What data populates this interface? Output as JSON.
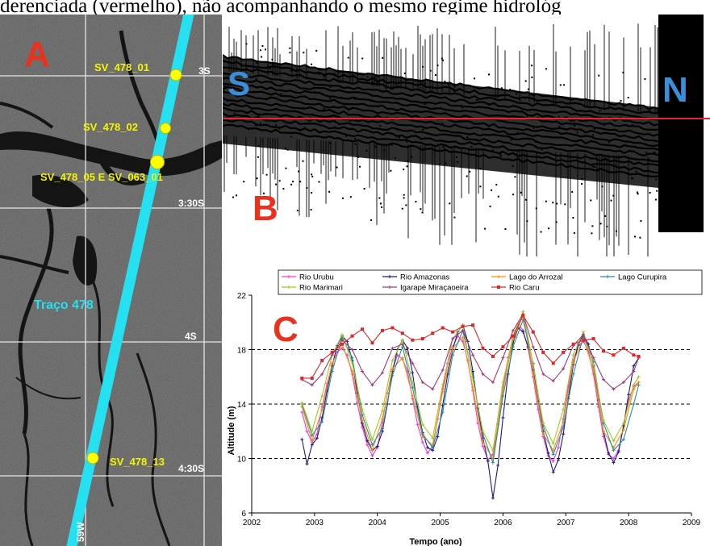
{
  "caption": "derenciada (vermelho), não acompanhando o mesmo regime hidrológ",
  "panel_a": {
    "letter": "A",
    "track_label": "Traço 478",
    "stations": [
      "SV_478_01",
      "SV_478_02",
      "SV_478_05 E SV_063_01",
      "SV_478_13"
    ],
    "lat_labels": [
      "3S",
      "3:30S",
      "4S",
      "4:30S"
    ],
    "lon_label": "59W",
    "colors": {
      "track": "#25e0f0",
      "station": "#ffff00",
      "letter": "#e8321e",
      "grid": "#e6e6e6"
    }
  },
  "panel_b": {
    "letter": "B",
    "south": "S",
    "north": "N",
    "colors": {
      "ref_line": "#e8242a",
      "dir_letters": "#3a8fd8",
      "letter": "#e8321e"
    }
  },
  "chart_data": {
    "type": "line",
    "panel_letter": "C",
    "xlabel": "Tempo (ano)",
    "ylabel": "Altitude (m)",
    "xlim": [
      2002,
      2009
    ],
    "ylim": [
      6,
      22
    ],
    "xticks": [
      "2002",
      "2003",
      "2004",
      "2005",
      "2006",
      "2007",
      "2008",
      "2009"
    ],
    "yticks": [
      "6",
      "10",
      "14",
      "18",
      "22"
    ],
    "grid_lines_y": [
      10,
      14,
      18
    ],
    "legend_placement": "top",
    "series": [
      {
        "name": "Rio Urubu",
        "color": "#e83ce8",
        "marker": "plus",
        "x": [
          2002.8,
          2002.88,
          2002.96,
          2003.04,
          2003.12,
          2003.2,
          2003.28,
          2003.36,
          2003.44,
          2003.52,
          2003.6,
          2003.68,
          2003.76,
          2003.84,
          2003.92,
          2004.0,
          2004.08,
          2004.16,
          2004.24,
          2004.32,
          2004.4,
          2004.48,
          2004.56,
          2004.64,
          2004.72,
          2004.8,
          2004.88,
          2004.96,
          2005.04,
          2005.12,
          2005.2,
          2005.28,
          2005.36,
          2005.44,
          2005.52,
          2005.6,
          2005.68,
          2005.76,
          2005.84,
          2005.92,
          2006.0,
          2006.08,
          2006.16,
          2006.24,
          2006.32,
          2006.4,
          2006.48,
          2006.56,
          2006.64,
          2006.72,
          2006.8,
          2006.88,
          2006.96,
          2007.04,
          2007.12,
          2007.2,
          2007.28,
          2007.36,
          2007.44,
          2007.52,
          2007.6,
          2007.68,
          2007.76,
          2007.84,
          2007.92,
          2008.0,
          2008.08,
          2008.16
        ],
        "values": [
          13.4,
          12.0,
          11.2,
          11.8,
          13.8,
          15.5,
          16.9,
          17.8,
          18.1,
          17.6,
          16.2,
          14.1,
          12.3,
          11.0,
          10.2,
          10.8,
          12.7,
          14.8,
          16.5,
          17.6,
          17.3,
          16.4,
          14.4,
          12.5,
          11.2,
          10.4,
          10.9,
          12.9,
          15.1,
          17.0,
          18.2,
          19.0,
          18.6,
          17.2,
          15.0,
          12.6,
          10.9,
          9.9,
          10.3,
          12.5,
          15.2,
          17.4,
          18.9,
          19.9,
          19.4,
          18.1,
          16.0,
          13.6,
          11.6,
          10.2,
          9.8,
          10.8,
          12.9,
          15.3,
          17.2,
          18.3,
          18.6,
          17.9,
          16.2,
          13.8,
          11.6,
          10.3,
          10.0,
          10.6,
          12.4,
          14.3,
          15.3,
          15.6
        ]
      },
      {
        "name": "Rio Amazonas",
        "color": "#1a1a80",
        "marker": "plus",
        "x": [
          2002.8,
          2002.88,
          2002.96,
          2003.04,
          2003.12,
          2003.2,
          2003.28,
          2003.36,
          2003.44,
          2003.52,
          2003.6,
          2003.68,
          2003.76,
          2003.84,
          2003.92,
          2004.0,
          2004.08,
          2004.16,
          2004.24,
          2004.32,
          2004.4,
          2004.48,
          2004.56,
          2004.64,
          2004.72,
          2004.8,
          2004.88,
          2004.96,
          2005.04,
          2005.12,
          2005.2,
          2005.28,
          2005.36,
          2005.44,
          2005.52,
          2005.6,
          2005.68,
          2005.76,
          2005.84,
          2005.92,
          2006.0,
          2006.08,
          2006.16,
          2006.24,
          2006.32,
          2006.4,
          2006.48,
          2006.56,
          2006.64,
          2006.72,
          2006.8,
          2006.88,
          2006.96,
          2007.04,
          2007.12,
          2007.2,
          2007.28,
          2007.36,
          2007.44,
          2007.52,
          2007.6,
          2007.68,
          2007.76,
          2007.84,
          2007.92,
          2008.0,
          2008.08,
          2008.16
        ],
        "values": [
          11.4,
          9.6,
          11.0,
          11.5,
          13.0,
          15.0,
          16.8,
          18.3,
          19.0,
          18.6,
          17.2,
          14.8,
          12.6,
          11.3,
          10.6,
          10.9,
          12.0,
          14.0,
          16.4,
          18.0,
          18.7,
          18.1,
          16.3,
          13.8,
          11.9,
          10.8,
          10.6,
          11.6,
          13.9,
          16.2,
          18.0,
          19.3,
          19.8,
          18.6,
          16.4,
          13.7,
          11.5,
          9.8,
          7.1,
          9.5,
          13.0,
          16.2,
          18.5,
          19.6,
          19.3,
          18.2,
          16.5,
          14.2,
          12.0,
          10.4,
          9.0,
          9.9,
          11.8,
          14.4,
          16.9,
          18.4,
          19.1,
          18.4,
          16.8,
          14.3,
          12.0,
          10.4,
          9.7,
          10.5,
          12.4,
          14.7,
          16.8,
          17.4
        ]
      },
      {
        "name": "Lago do Arrozal",
        "color": "#ff8c00",
        "marker": "plus",
        "x": [
          2002.8,
          2002.96,
          2003.12,
          2003.28,
          2003.44,
          2003.6,
          2003.76,
          2003.92,
          2004.08,
          2004.24,
          2004.4,
          2004.56,
          2004.72,
          2004.88,
          2005.04,
          2005.2,
          2005.36,
          2005.52,
          2005.68,
          2005.84,
          2006.0,
          2006.16,
          2006.32,
          2006.48,
          2006.64,
          2006.8,
          2006.96,
          2007.12,
          2007.28,
          2007.44,
          2007.6,
          2007.76,
          2007.92,
          2008.08,
          2008.16
        ],
        "values": [
          13.8,
          11.3,
          13.6,
          17.0,
          18.4,
          16.4,
          12.8,
          10.6,
          12.9,
          16.6,
          17.4,
          14.6,
          11.6,
          11.0,
          14.9,
          18.1,
          18.9,
          15.2,
          11.2,
          10.0,
          15.0,
          18.8,
          20.5,
          16.3,
          11.8,
          10.6,
          12.7,
          17.1,
          18.8,
          16.5,
          12.0,
          10.8,
          12.1,
          15.1,
          15.6
        ]
      },
      {
        "name": "Lago Curupira",
        "color": "#2090a0",
        "marker": "plus",
        "x": [
          2002.8,
          2002.96,
          2003.12,
          2003.28,
          2003.44,
          2003.6,
          2003.76,
          2003.92,
          2004.08,
          2004.24,
          2004.4,
          2004.56,
          2004.72,
          2004.88,
          2005.04,
          2005.2,
          2005.36,
          2005.52,
          2005.68,
          2005.84,
          2006.0,
          2006.16,
          2006.32,
          2006.48,
          2006.64,
          2006.8,
          2006.96,
          2007.12,
          2007.28,
          2007.44,
          2007.6,
          2007.76,
          2007.92,
          2008.08,
          2008.16
        ],
        "values": [
          14.0,
          11.7,
          12.7,
          16.4,
          18.9,
          17.4,
          13.2,
          11.0,
          12.2,
          16.1,
          18.2,
          15.2,
          11.8,
          10.8,
          13.4,
          17.6,
          19.4,
          16.0,
          11.8,
          9.7,
          14.6,
          18.2,
          20.2,
          17.0,
          12.4,
          10.3,
          12.3,
          16.2,
          19.0,
          17.1,
          12.6,
          10.6,
          11.4,
          14.0,
          15.4
        ]
      },
      {
        "name": "Rio Marimari",
        "color": "#a0c820",
        "marker": "plus",
        "x": [
          2002.8,
          2002.96,
          2003.12,
          2003.28,
          2003.44,
          2003.6,
          2003.76,
          2003.92,
          2004.08,
          2004.24,
          2004.4,
          2004.56,
          2004.72,
          2004.88,
          2005.04,
          2005.2,
          2005.36,
          2005.52,
          2005.68,
          2005.84,
          2006.0,
          2006.16,
          2006.32,
          2006.48,
          2006.64,
          2006.8,
          2006.96,
          2007.12,
          2007.28,
          2007.44,
          2007.6,
          2007.76,
          2007.92,
          2008.08,
          2008.16
        ],
        "values": [
          14.1,
          12.0,
          14.6,
          17.6,
          19.1,
          17.0,
          13.6,
          11.4,
          13.5,
          17.2,
          18.7,
          15.6,
          12.5,
          11.5,
          15.4,
          18.8,
          19.8,
          15.8,
          12.0,
          10.6,
          15.6,
          19.0,
          20.8,
          16.9,
          12.6,
          11.1,
          13.6,
          17.6,
          19.3,
          16.9,
          12.8,
          11.3,
          12.6,
          15.4,
          16.0
        ]
      },
      {
        "name": "Igarapé Miraçaoeira",
        "color": "#a03a7a",
        "marker": "plus",
        "x": [
          2002.8,
          2002.96,
          2003.12,
          2003.28,
          2003.44,
          2003.6,
          2003.76,
          2003.92,
          2004.08,
          2004.24,
          2004.4,
          2004.56,
          2004.72,
          2004.88,
          2005.04,
          2005.2,
          2005.36,
          2005.52,
          2005.68,
          2005.84,
          2006.0,
          2006.16,
          2006.32,
          2006.48,
          2006.64,
          2006.8,
          2006.96,
          2007.12,
          2007.28,
          2007.44,
          2007.6,
          2007.76,
          2007.92,
          2008.08,
          2008.16
        ],
        "values": [
          15.8,
          15.4,
          16.2,
          17.6,
          18.7,
          18.0,
          16.4,
          15.4,
          16.3,
          18.1,
          18.4,
          17.0,
          15.6,
          15.1,
          16.5,
          18.8,
          19.4,
          17.6,
          16.2,
          15.6,
          17.4,
          19.4,
          20.6,
          18.2,
          16.2,
          15.7,
          16.6,
          18.3,
          19.1,
          17.4,
          15.8,
          15.1,
          15.6,
          16.4,
          17.4
        ]
      },
      {
        "name": "Rio Caru",
        "color": "#dc2828",
        "marker": "square",
        "x": [
          2002.8,
          2002.96,
          2003.12,
          2003.28,
          2003.44,
          2003.6,
          2003.76,
          2003.92,
          2004.08,
          2004.24,
          2004.4,
          2004.56,
          2004.72,
          2004.88,
          2005.04,
          2005.2,
          2005.36,
          2005.52,
          2005.68,
          2005.84,
          2006.0,
          2006.16,
          2006.32,
          2006.48,
          2006.64,
          2006.8,
          2006.96,
          2007.12,
          2007.28,
          2007.44,
          2007.6,
          2007.76,
          2007.92,
          2008.08,
          2008.16
        ],
        "values": [
          15.9,
          15.9,
          17.2,
          17.8,
          18.4,
          19.0,
          19.5,
          18.5,
          19.4,
          19.6,
          19.2,
          18.7,
          18.8,
          19.2,
          19.6,
          19.3,
          19.7,
          19.8,
          18.1,
          17.5,
          18.2,
          19.0,
          20.5,
          19.3,
          17.8,
          17.0,
          17.8,
          18.4,
          18.7,
          18.8,
          17.9,
          17.6,
          18.1,
          17.6,
          17.5
        ]
      }
    ]
  }
}
